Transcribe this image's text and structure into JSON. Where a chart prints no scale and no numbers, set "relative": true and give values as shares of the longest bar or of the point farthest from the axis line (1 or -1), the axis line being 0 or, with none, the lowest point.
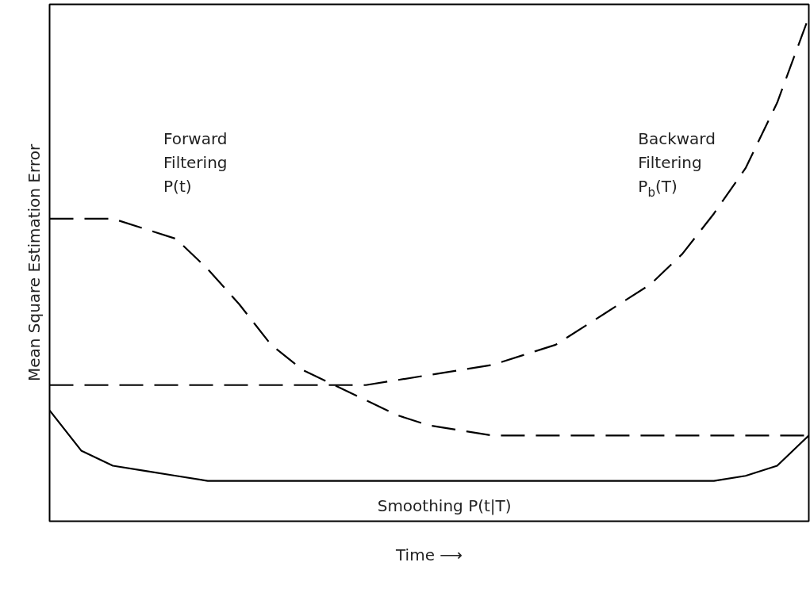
{
  "chart_data": {
    "type": "line",
    "relative": true,
    "xlabel": "Time ⟶",
    "ylabel": "Mean Square Estimation Error",
    "categories": [
      null,
      null,
      null,
      null,
      null,
      null,
      null,
      null,
      null,
      null,
      null,
      null,
      null,
      null,
      null,
      null,
      null,
      null,
      null,
      null,
      null,
      null,
      null,
      null,
      null
    ],
    "series": [
      {
        "name": "Forward Filtering P(t)",
        "color": "#000000",
        "line_style": "dashed",
        "values": [
          0.6,
          0.6,
          0.6,
          0.58,
          0.56,
          0.5,
          0.43,
          0.35,
          0.3,
          0.27,
          0.24,
          0.21,
          0.19,
          0.18,
          0.17,
          0.17,
          0.17,
          0.17,
          0.17,
          0.17,
          0.17,
          0.17,
          0.17,
          0.17,
          0.17
        ]
      },
      {
        "name": "Backward Filtering P$_{b}$(T)",
        "color": "#000000",
        "line_style": "dashed",
        "values": [
          0.27,
          0.27,
          0.27,
          0.27,
          0.27,
          0.27,
          0.27,
          0.27,
          0.27,
          0.27,
          0.27,
          0.28,
          0.29,
          0.3,
          0.31,
          0.33,
          0.35,
          0.39,
          0.43,
          0.47,
          0.53,
          0.61,
          0.7,
          0.83,
          1.0
        ]
      },
      {
        "name": "Smoothing P(t|T)",
        "color": "#000000",
        "line_style": "solid",
        "values": [
          0.22,
          0.14,
          0.11,
          0.1,
          0.09,
          0.08,
          0.08,
          0.08,
          0.08,
          0.08,
          0.08,
          0.08,
          0.08,
          0.08,
          0.08,
          0.08,
          0.08,
          0.08,
          0.08,
          0.08,
          0.08,
          0.08,
          0.09,
          0.11,
          0.17
        ]
      }
    ],
    "legend": false,
    "tick_labels": false
  }
}
